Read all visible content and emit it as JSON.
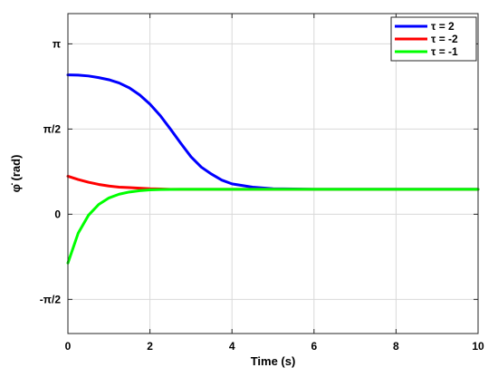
{
  "chart_data": {
    "type": "line",
    "title": "",
    "xlabel": "Time (s)",
    "ylabel": "φ̇ (rad)",
    "xlim": [
      0,
      10
    ],
    "ylim": [
      -2.2,
      3.7
    ],
    "grid": true,
    "legend_position": "top-right",
    "x_ticks": [
      {
        "value": 0,
        "label": "0"
      },
      {
        "value": 2,
        "label": "2"
      },
      {
        "value": 4,
        "label": "4"
      },
      {
        "value": 6,
        "label": "6"
      },
      {
        "value": 8,
        "label": "8"
      },
      {
        "value": 10,
        "label": "10"
      }
    ],
    "y_ticks": [
      {
        "value": -1.5708,
        "label": "-π/2"
      },
      {
        "value": 0,
        "label": "0"
      },
      {
        "value": 1.5708,
        "label": "π/2"
      },
      {
        "value": 3.1416,
        "label": "π"
      }
    ],
    "x": [
      0,
      0.25,
      0.5,
      0.75,
      1.0,
      1.25,
      1.5,
      1.75,
      2.0,
      2.25,
      2.5,
      2.75,
      3.0,
      3.25,
      3.5,
      3.75,
      4.0,
      4.5,
      5.0,
      5.5,
      6.0,
      7.0,
      8.0,
      9.0,
      10.0
    ],
    "series": [
      {
        "name": "τ = 2",
        "color": "#0000ff",
        "values": [
          2.57,
          2.565,
          2.55,
          2.52,
          2.48,
          2.42,
          2.33,
          2.2,
          2.03,
          1.82,
          1.57,
          1.31,
          1.06,
          0.87,
          0.74,
          0.63,
          0.56,
          0.5,
          0.47,
          0.465,
          0.46,
          0.46,
          0.46,
          0.46,
          0.46
        ]
      },
      {
        "name": "τ = -2",
        "color": "#ff0000",
        "values": [
          0.7,
          0.64,
          0.59,
          0.55,
          0.52,
          0.5,
          0.49,
          0.48,
          0.47,
          0.465,
          0.46,
          0.46,
          0.46,
          0.46,
          0.46,
          0.46,
          0.46,
          0.46,
          0.46,
          0.46,
          0.46,
          0.46,
          0.46,
          0.46,
          0.46
        ]
      },
      {
        "name": "τ = -1",
        "color": "#00ff00",
        "values": [
          -0.9,
          -0.35,
          -0.02,
          0.18,
          0.3,
          0.37,
          0.41,
          0.435,
          0.45,
          0.455,
          0.458,
          0.46,
          0.46,
          0.46,
          0.46,
          0.46,
          0.46,
          0.46,
          0.46,
          0.46,
          0.46,
          0.46,
          0.46,
          0.46,
          0.46
        ]
      }
    ]
  }
}
